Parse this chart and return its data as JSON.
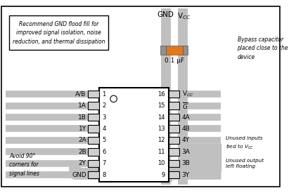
{
  "bg_color": "#ffffff",
  "border_color": "#000000",
  "gray_wire": "#c0c0c0",
  "pin_box_color": "#d0d0d0",
  "medium_gray": "#909090",
  "orange_color": "#e07820",
  "left_labels": [
    "A/B",
    "1A",
    "1B",
    "1Y",
    "2A",
    "2B",
    "2Y",
    "GND"
  ],
  "left_nums": [
    1,
    2,
    3,
    4,
    5,
    6,
    7,
    8
  ],
  "right_labels": [
    "V_{CC}",
    "\\overline{G}",
    "4A",
    "4B",
    "4Y",
    "3A",
    "3B",
    "3Y"
  ],
  "right_nums": [
    16,
    15,
    14,
    13,
    12,
    11,
    10,
    9
  ],
  "note_text": "Recommend GND flood fill for\nimproved signal isolation, noise\nreduction, and thermal dissipation",
  "bypass_label": "0.1 μF",
  "bypass_annotation": "Bypass capacitor\nplaced close to the\ndevice",
  "avoid_text": "Avoid 90°\ncorners for\nsignal lines",
  "unused_inputs": "Unused inputs\ntied to V",
  "unused_output": "Unused output\nleft floating"
}
